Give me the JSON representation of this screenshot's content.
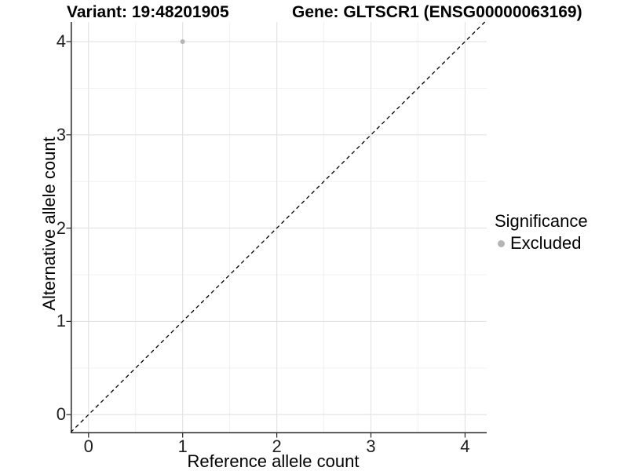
{
  "figure": {
    "background": "#ffffff"
  },
  "chart_data": {
    "type": "scatter",
    "title_left": "Variant: 19:48201905",
    "title_right": "Gene: GLTSCR1 (ENSG00000063169)",
    "xlabel": "Reference allele count",
    "ylabel": "Alternative allele count",
    "x_ticks": [
      0,
      1,
      2,
      3,
      4
    ],
    "y_ticks": [
      0,
      1,
      2,
      3,
      4
    ],
    "xlim": [
      -0.19,
      4.23
    ],
    "ylim": [
      -0.2,
      4.21
    ],
    "grid": {
      "major": true,
      "minor": true,
      "major_color": "#e2e2e2",
      "minor_color": "#f1f1f1"
    },
    "axis_color": "#262626",
    "tick_label_color": "#1f1f1f",
    "reference_line": {
      "slope": 1,
      "intercept": 0,
      "style": "dashed",
      "color": "#000000"
    },
    "series": [
      {
        "name": "Excluded",
        "color": "#b5b5b5",
        "points": [
          {
            "x": 1,
            "y": 4
          }
        ]
      }
    ],
    "legend": {
      "title": "Significance",
      "position": "right",
      "items": [
        {
          "label": "Excluded",
          "color": "#b5b5b5"
        }
      ]
    }
  }
}
